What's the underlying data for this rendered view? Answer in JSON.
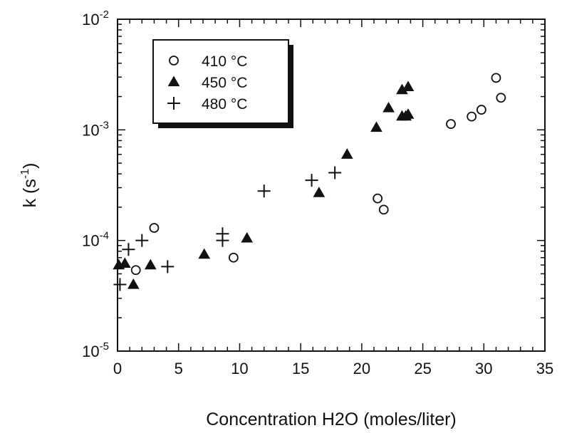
{
  "chart_data": {
    "type": "scatter",
    "title": "",
    "xlabel": "Concentration H2O (moles/liter)",
    "ylabel": {
      "base": "k (s",
      "sup": "-1",
      "tail": ")"
    },
    "xlim": [
      0,
      35
    ],
    "ylim": [
      1e-05,
      0.01
    ],
    "y_scale": "log",
    "grid": false,
    "x_ticks": [
      {
        "value": 0,
        "label": "0"
      },
      {
        "value": 5,
        "label": "5"
      },
      {
        "value": 10,
        "label": "10"
      },
      {
        "value": 15,
        "label": "15"
      },
      {
        "value": 20,
        "label": "20"
      },
      {
        "value": 25,
        "label": "25"
      },
      {
        "value": 30,
        "label": "30"
      },
      {
        "value": 35,
        "label": "35"
      }
    ],
    "y_ticks": [
      {
        "value": 1e-05,
        "base": "10",
        "exp": "-5"
      },
      {
        "value": 0.0001,
        "base": "10",
        "exp": "-4"
      },
      {
        "value": 0.001,
        "base": "10",
        "exp": "-3"
      },
      {
        "value": 0.01,
        "base": "10",
        "exp": "-2"
      }
    ],
    "legend_position": "top-left",
    "series": [
      {
        "name": "410 °C",
        "marker": "open-circle",
        "points": [
          {
            "x": 1.5,
            "y": 5.4e-05
          },
          {
            "x": 3.0,
            "y": 0.00013
          },
          {
            "x": 9.5,
            "y": 7e-05
          },
          {
            "x": 21.3,
            "y": 0.00024
          },
          {
            "x": 21.8,
            "y": 0.00019
          },
          {
            "x": 27.3,
            "y": 0.00113
          },
          {
            "x": 29.0,
            "y": 0.00132
          },
          {
            "x": 29.8,
            "y": 0.00152
          },
          {
            "x": 31.0,
            "y": 0.00295
          },
          {
            "x": 31.4,
            "y": 0.00195
          }
        ]
      },
      {
        "name": "450 °C",
        "marker": "filled-triangle",
        "points": [
          {
            "x": 0.1,
            "y": 6e-05
          },
          {
            "x": 0.6,
            "y": 6.2e-05
          },
          {
            "x": 1.3,
            "y": 4e-05
          },
          {
            "x": 2.7,
            "y": 6e-05
          },
          {
            "x": 7.1,
            "y": 7.5e-05
          },
          {
            "x": 10.6,
            "y": 0.000105
          },
          {
            "x": 16.5,
            "y": 0.00027
          },
          {
            "x": 18.8,
            "y": 0.0006
          },
          {
            "x": 21.2,
            "y": 0.00105
          },
          {
            "x": 22.2,
            "y": 0.00158
          },
          {
            "x": 23.3,
            "y": 0.00133
          },
          {
            "x": 23.6,
            "y": 0.00133
          },
          {
            "x": 23.3,
            "y": 0.0023
          },
          {
            "x": 23.8,
            "y": 0.00245
          },
          {
            "x": 23.8,
            "y": 0.00138
          }
        ]
      },
      {
        "name": "480 °C",
        "marker": "plus",
        "points": [
          {
            "x": 0.2,
            "y": 4e-05
          },
          {
            "x": 0.9,
            "y": 8.3e-05
          },
          {
            "x": 2.0,
            "y": 0.0001
          },
          {
            "x": 4.1,
            "y": 5.8e-05
          },
          {
            "x": 8.6,
            "y": 0.000115
          },
          {
            "x": 8.6,
            "y": 0.0001
          },
          {
            "x": 12.0,
            "y": 0.00028
          },
          {
            "x": 15.9,
            "y": 0.00035
          },
          {
            "x": 17.8,
            "y": 0.00041
          }
        ]
      }
    ]
  }
}
